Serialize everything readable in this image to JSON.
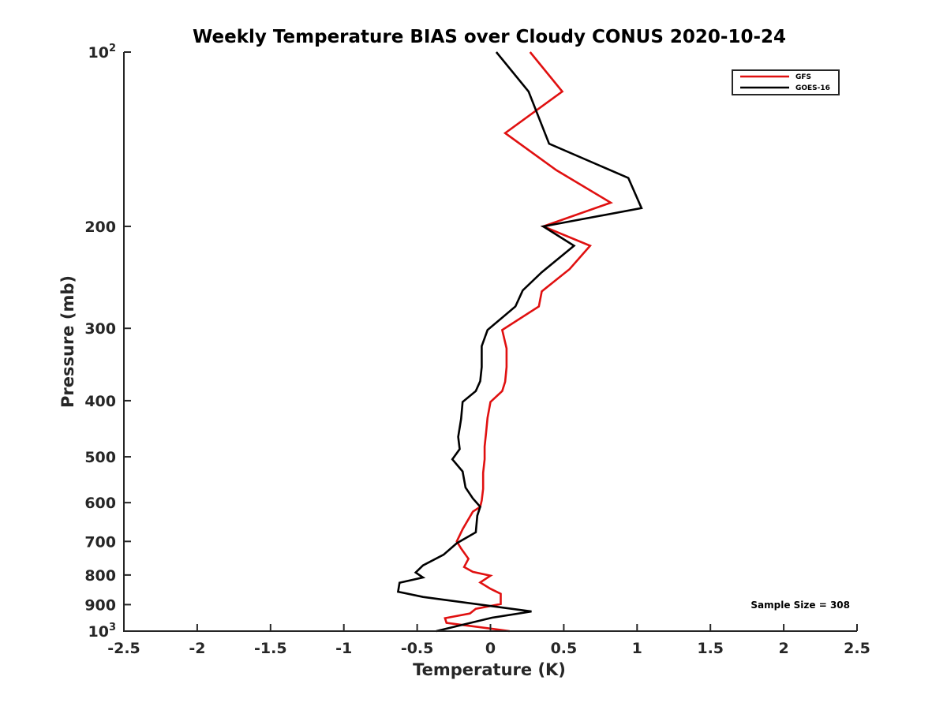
{
  "chart_data": {
    "type": "line",
    "title": "Weekly Temperature BIAS over Cloudy CONUS 2020-10-24",
    "xlabel": "Temperature (K)",
    "ylabel": "Pressure (mb)",
    "xlim": [
      -2.5,
      2.5
    ],
    "ylim": [
      100,
      1000
    ],
    "yscale": "log",
    "yreversed": true,
    "grid": false,
    "x_ticks": [
      -2.5,
      -2,
      -1.5,
      -1,
      -0.5,
      0,
      0.5,
      1,
      1.5,
      2,
      2.5
    ],
    "x_tick_labels": [
      "-2.5",
      "-2",
      "-1.5",
      "-1",
      "-0.5",
      "0",
      "0.5",
      "1",
      "1.5",
      "2",
      "2.5"
    ],
    "y_ticks": [
      {
        "value": 100,
        "base": "10",
        "exp": "2"
      },
      {
        "value": 200,
        "label": "200"
      },
      {
        "value": 300,
        "label": "300"
      },
      {
        "value": 400,
        "label": "400"
      },
      {
        "value": 500,
        "label": "500"
      },
      {
        "value": 600,
        "label": "600"
      },
      {
        "value": 700,
        "label": "700"
      },
      {
        "value": 800,
        "label": "800"
      },
      {
        "value": 900,
        "label": "900"
      },
      {
        "value": 1000,
        "base": "10",
        "exp": "3"
      }
    ],
    "legend_position": "top-right",
    "annotation": "Sample Size = 308",
    "series": [
      {
        "name": "GFS",
        "color": "#e01010",
        "points": [
          [
            0.27,
            100
          ],
          [
            0.49,
            117
          ],
          [
            0.1,
            138
          ],
          [
            0.45,
            160
          ],
          [
            0.82,
            182
          ],
          [
            0.36,
            200
          ],
          [
            0.68,
            216
          ],
          [
            0.54,
            237
          ],
          [
            0.35,
            259
          ],
          [
            0.33,
            275
          ],
          [
            0.08,
            302
          ],
          [
            0.11,
            325
          ],
          [
            0.11,
            350
          ],
          [
            0.1,
            371
          ],
          [
            0.08,
            385
          ],
          [
            0.0,
            402
          ],
          [
            -0.02,
            428
          ],
          [
            -0.03,
            455
          ],
          [
            -0.04,
            480
          ],
          [
            -0.04,
            505
          ],
          [
            -0.05,
            533
          ],
          [
            -0.05,
            568
          ],
          [
            -0.06,
            595
          ],
          [
            -0.07,
            610
          ],
          [
            -0.12,
            622
          ],
          [
            -0.19,
            667
          ],
          [
            -0.23,
            700
          ],
          [
            -0.2,
            720
          ],
          [
            -0.15,
            750
          ],
          [
            -0.18,
            775
          ],
          [
            -0.12,
            790
          ],
          [
            0.0,
            802
          ],
          [
            -0.07,
            824
          ],
          [
            0.0,
            845
          ],
          [
            0.07,
            862
          ],
          [
            0.07,
            898
          ],
          [
            -0.1,
            915
          ],
          [
            -0.14,
            932
          ],
          [
            -0.31,
            950
          ],
          [
            -0.3,
            968
          ],
          [
            0.13,
            1000
          ]
        ]
      },
      {
        "name": "GOES-16",
        "color": "#000000",
        "points": [
          [
            0.04,
            100
          ],
          [
            0.26,
            117
          ],
          [
            0.4,
            144
          ],
          [
            0.94,
            165
          ],
          [
            1.03,
            186
          ],
          [
            0.36,
            200
          ],
          [
            0.57,
            216
          ],
          [
            0.35,
            240
          ],
          [
            0.22,
            258
          ],
          [
            0.17,
            275
          ],
          [
            -0.02,
            302
          ],
          [
            -0.06,
            322
          ],
          [
            -0.06,
            350
          ],
          [
            -0.07,
            370
          ],
          [
            -0.1,
            385
          ],
          [
            -0.19,
            402
          ],
          [
            -0.2,
            430
          ],
          [
            -0.22,
            462
          ],
          [
            -0.21,
            485
          ],
          [
            -0.26,
            505
          ],
          [
            -0.19,
            530
          ],
          [
            -0.17,
            565
          ],
          [
            -0.12,
            590
          ],
          [
            -0.07,
            610
          ],
          [
            -0.09,
            632
          ],
          [
            -0.1,
            675
          ],
          [
            -0.23,
            705
          ],
          [
            -0.32,
            738
          ],
          [
            -0.46,
            770
          ],
          [
            -0.51,
            792
          ],
          [
            -0.46,
            808
          ],
          [
            -0.62,
            825
          ],
          [
            -0.63,
            855
          ],
          [
            -0.46,
            873
          ],
          [
            0.28,
            925
          ],
          [
            0.01,
            948
          ],
          [
            -0.37,
            1000
          ]
        ]
      }
    ]
  }
}
